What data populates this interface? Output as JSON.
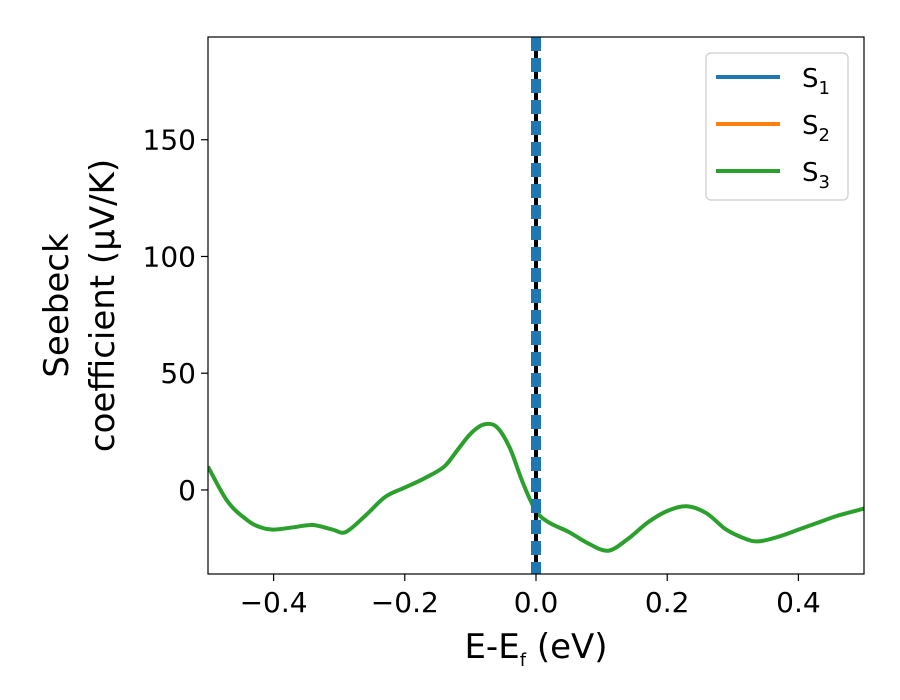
{
  "chart_data": {
    "type": "line",
    "title": "",
    "xlabel": {
      "base": "E-E",
      "sub": "f",
      "rest": " (eV)"
    },
    "ylabel": {
      "line1": "Seebeck",
      "line2": "coefficient  (μV/K)"
    },
    "xlim": [
      -0.5,
      0.5
    ],
    "ylim": [
      -36,
      194
    ],
    "xticks": [
      -0.4,
      -0.2,
      0.0,
      0.2,
      0.4
    ],
    "xtick_labels": [
      "−0.4",
      "−0.2",
      "0.0",
      "0.2",
      "0.4"
    ],
    "yticks": [
      0,
      50,
      100,
      150
    ],
    "ytick_labels": [
      "0",
      "50",
      "100",
      "150"
    ],
    "grid": false,
    "legend_position": "top-right",
    "vline": {
      "x": 0.0,
      "style": "dashed",
      "colors": [
        "#000000",
        "#1f77b4"
      ]
    },
    "series": [
      {
        "name": {
          "base": "S",
          "sub": "1"
        },
        "color": "#1f77b4",
        "x": [],
        "y": []
      },
      {
        "name": {
          "base": "S",
          "sub": "2"
        },
        "color": "#ff7f0e",
        "x": [],
        "y": []
      },
      {
        "name": {
          "base": "S",
          "sub": "3"
        },
        "color": "#2ca02c",
        "x": [
          -0.5,
          -0.47,
          -0.44,
          -0.42,
          -0.4,
          -0.37,
          -0.34,
          -0.31,
          -0.29,
          -0.26,
          -0.23,
          -0.2,
          -0.17,
          -0.14,
          -0.12,
          -0.1,
          -0.08,
          -0.06,
          -0.04,
          -0.02,
          0.0,
          0.02,
          0.05,
          0.08,
          0.11,
          0.14,
          0.17,
          0.2,
          0.23,
          0.26,
          0.29,
          0.32,
          0.34,
          0.37,
          0.4,
          0.43,
          0.46,
          0.5
        ],
        "y": [
          10,
          -5,
          -13,
          -16,
          -17,
          -16,
          -15,
          -17,
          -18,
          -11,
          -3,
          1,
          5,
          10,
          17,
          24,
          28,
          27,
          18,
          3,
          -9,
          -14,
          -18,
          -23,
          -26,
          -21,
          -14,
          -9,
          -7,
          -10,
          -17,
          -21,
          -22,
          -20,
          -17,
          -14,
          -11,
          -8
        ]
      }
    ]
  }
}
